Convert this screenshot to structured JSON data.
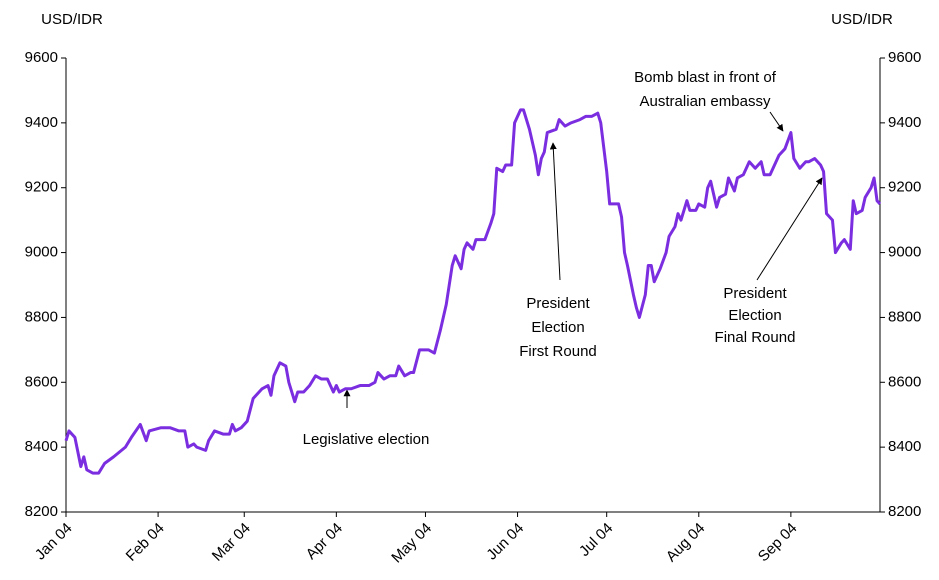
{
  "chart_data": {
    "type": "line",
    "ylabel": "USD/IDR",
    "y2label": "USD/IDR",
    "ylim": [
      8200,
      9600
    ],
    "yticks": [
      8200,
      8400,
      8600,
      8800,
      9000,
      9200,
      9400,
      9600
    ],
    "y2lim": [
      8200,
      9600
    ],
    "y2ticks": [
      8200,
      8400,
      8600,
      8800,
      9000,
      9200,
      9400,
      9600
    ],
    "xlim": [
      0,
      274
    ],
    "xticks": [
      {
        "value": 0,
        "label": "Jan 04"
      },
      {
        "value": 31,
        "label": "Feb 04"
      },
      {
        "value": 60,
        "label": "Mar 04"
      },
      {
        "value": 91,
        "label": "Apr 04"
      },
      {
        "value": 121,
        "label": "May 04"
      },
      {
        "value": 152,
        "label": "Jun 04"
      },
      {
        "value": 182,
        "label": "Jul 04"
      },
      {
        "value": 213,
        "label": "Aug 04"
      },
      {
        "value": 244,
        "label": "Sep 04"
      }
    ],
    "grid": false,
    "series": [
      {
        "color": "#7b2ee0",
        "x": [
          0,
          1,
          3,
          5,
          6,
          7,
          9,
          11,
          13,
          16,
          20,
          22,
          25,
          27,
          28,
          32,
          35,
          38,
          40,
          41,
          43,
          44,
          47,
          48,
          50,
          53,
          55,
          56,
          57,
          59,
          61,
          63,
          64,
          66,
          68,
          69,
          70,
          72,
          74,
          75,
          77,
          78,
          80,
          82,
          84,
          86,
          88,
          90,
          91,
          92,
          94,
          96,
          99,
          102,
          104,
          105,
          107,
          109,
          111,
          112,
          114,
          116,
          117,
          119,
          122,
          124,
          126,
          128,
          130,
          131,
          133,
          134,
          135,
          137,
          138,
          139,
          141,
          143,
          144,
          145,
          147,
          148,
          150,
          151,
          153,
          154,
          156,
          158,
          159,
          160,
          161,
          162,
          165,
          166,
          168,
          170,
          173,
          175,
          177,
          179,
          180,
          182,
          183,
          186,
          187,
          188,
          189,
          191,
          192,
          193,
          195,
          196,
          197,
          198,
          200,
          202,
          203,
          205,
          206,
          207,
          209,
          210,
          212,
          213,
          215,
          216,
          217,
          219,
          220,
          222,
          223,
          225,
          226,
          228,
          230,
          231,
          232,
          234,
          235,
          237,
          239,
          240,
          242,
          244,
          245,
          247,
          249,
          250,
          252,
          254,
          255,
          256,
          258,
          259,
          261,
          262,
          264,
          265,
          266,
          268,
          269,
          271,
          272,
          273,
          274
        ],
        "values": [
          8420,
          8450,
          8430,
          8340,
          8370,
          8330,
          8320,
          8320,
          8350,
          8370,
          8400,
          8430,
          8470,
          8420,
          8450,
          8460,
          8460,
          8450,
          8450,
          8400,
          8410,
          8400,
          8390,
          8420,
          8450,
          8440,
          8440,
          8470,
          8450,
          8460,
          8480,
          8550,
          8560,
          8580,
          8590,
          8560,
          8620,
          8660,
          8650,
          8600,
          8540,
          8570,
          8570,
          8590,
          8620,
          8610,
          8610,
          8570,
          8590,
          8570,
          8580,
          8580,
          8590,
          8590,
          8600,
          8630,
          8610,
          8620,
          8620,
          8650,
          8620,
          8630,
          8630,
          8700,
          8700,
          8690,
          8760,
          8840,
          8960,
          8990,
          8950,
          9010,
          9030,
          9010,
          9040,
          9040,
          9040,
          9090,
          9120,
          9260,
          9250,
          9270,
          9270,
          9400,
          9440,
          9440,
          9380,
          9300,
          9240,
          9290,
          9310,
          9370,
          9380,
          9410,
          9390,
          9400,
          9410,
          9420,
          9420,
          9430,
          9400,
          9250,
          9150,
          9150,
          9110,
          9000,
          8960,
          8870,
          8830,
          8800,
          8870,
          8960,
          8960,
          8910,
          8950,
          9000,
          9050,
          9080,
          9120,
          9100,
          9160,
          9130,
          9130,
          9150,
          9140,
          9200,
          9220,
          9140,
          9170,
          9180,
          9230,
          9190,
          9230,
          9240,
          9280,
          9270,
          9260,
          9280,
          9240,
          9240,
          9280,
          9300,
          9320,
          9370,
          9290,
          9260,
          9280,
          9280,
          9290,
          9270,
          9250,
          9120,
          9100,
          9000,
          9030,
          9040,
          9010,
          9160,
          9120,
          9130,
          9170,
          9200,
          9230,
          9160,
          9150
        ]
      }
    ],
    "annotations": [
      {
        "lines": [
          "Legislative election"
        ]
      },
      {
        "lines": [
          "President",
          "Election",
          "First Round"
        ]
      },
      {
        "lines": [
          "Bomb blast in front of",
          "Australian embassy"
        ]
      },
      {
        "lines": [
          "President",
          "Election",
          "Final Round"
        ]
      }
    ]
  }
}
